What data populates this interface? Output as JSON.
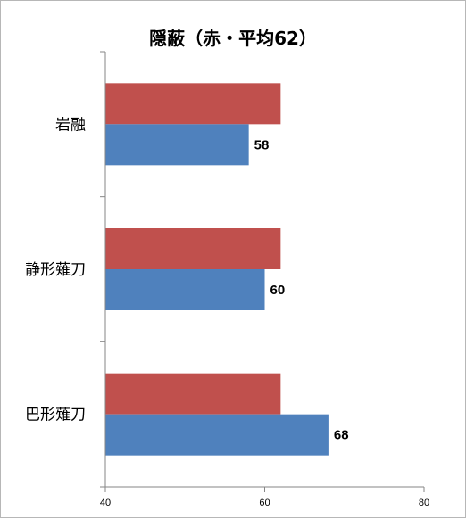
{
  "chart_data": {
    "type": "bar",
    "orientation": "horizontal",
    "title": "隠蔽（赤・平均62）",
    "categories": [
      "岩融",
      "静形薙刀",
      "巴形薙刀"
    ],
    "series": [
      {
        "values": [
          62,
          62,
          62
        ],
        "color": "#c0504d"
      },
      {
        "values": [
          58,
          60,
          68
        ],
        "color": "#4f81bd",
        "data_labels": [
          "58",
          "60",
          "68"
        ]
      }
    ],
    "xlim": [
      40,
      80
    ],
    "x_ticks": [
      "40",
      "60",
      "80"
    ],
    "grid": false,
    "legend": "none"
  }
}
